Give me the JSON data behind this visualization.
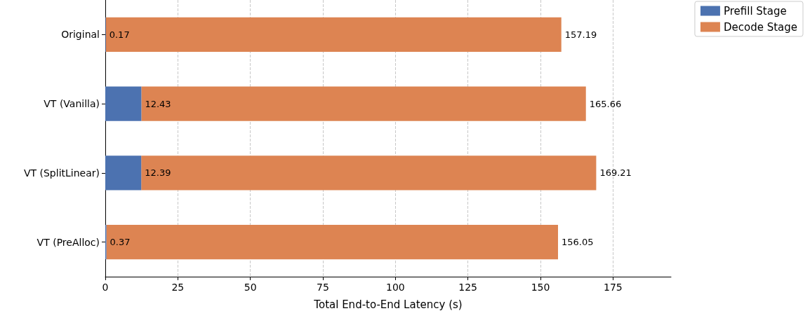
{
  "chart_data": {
    "type": "bar",
    "orientation": "horizontal",
    "stacked": true,
    "xlabel": "Total End-to-End Latency (s)",
    "categories": [
      "Original",
      "VT (Vanilla)",
      "VT (SplitLinear)",
      "VT (PreAlloc)"
    ],
    "series": [
      {
        "name": "Prefill Stage",
        "color": "#4c72b0",
        "values": [
          0.17,
          12.43,
          12.39,
          0.37
        ],
        "value_labels": [
          "0.17",
          "12.43",
          "12.39",
          "0.37"
        ]
      },
      {
        "name": "Decode Stage",
        "color": "#dd8452",
        "values": [
          157.02,
          153.23,
          156.82,
          155.68
        ]
      }
    ],
    "totals": [
      "157.19",
      "165.66",
      "169.21",
      "156.05"
    ],
    "xlim": [
      0,
      195
    ],
    "xticks": [
      0,
      25,
      50,
      75,
      100,
      125,
      150,
      175
    ],
    "grid": "x",
    "legend": "top right"
  }
}
